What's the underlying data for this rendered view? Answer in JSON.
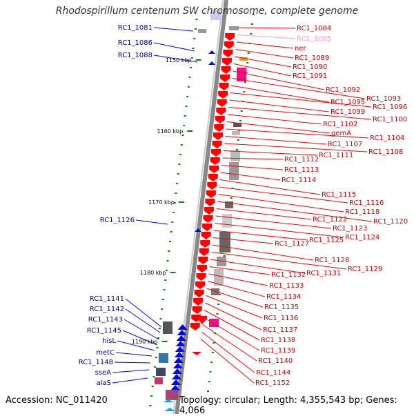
{
  "title": "Rhodospirillum centenum SW chromosome, complete genome",
  "footer": {
    "accession": "Accession: NC_011420",
    "topology": "Topology: circular; Length: 4,355,543 bp; Genes: 4,066"
  },
  "colors": {
    "forward": "#ff0000",
    "reverse": "#0000ff",
    "forward_label": "#cc0000",
    "reverse_label": "#000099",
    "pseudo": "#ff99cc",
    "ticks": "#008800",
    "rna": "#00aaff",
    "backbone": "#888888"
  },
  "scale_labels": [
    "1150 kbp",
    "1160 kbp",
    "1170 kbp",
    "1180 kbp",
    "1190 kbp"
  ],
  "left_labels": [
    "RC1_1081",
    "RC1_1086",
    "RC1_1088",
    "RC1_1126",
    "RC1_1141",
    "RC1_1142",
    "RC1_1143",
    "RC1_1145",
    "hisL",
    "metC",
    "RC1_1148",
    "sseA",
    "alaS"
  ],
  "right_labels": [
    "RC1_1084",
    "RC1_1085",
    "ner",
    "RC1_1089",
    "RC1_1090",
    "RC1_1091",
    "RC1_1092",
    "RC1_1093",
    "RC1_1095",
    "RC1_1096",
    "RC1_1099",
    "RC1_1100",
    "RC1_1102",
    "gemA",
    "RC1_1104",
    "RC1_1107",
    "RC1_1108",
    "RC1_1111",
    "RC1_1112",
    "RC1_1113",
    "RC1_1114",
    "RC1_1115",
    "RC1_1116",
    "RC1_1118",
    "RC1_1120",
    "RC1_1122",
    "RC1_1123",
    "RC1_1124",
    "RC1_1125",
    "RC1_1127",
    "RC1_1128",
    "RC1_1129",
    "RC1_1131",
    "RC1_1132",
    "RC1_1133",
    "RC1_1134",
    "RC1_1135",
    "RC1_1136",
    "RC1_1137",
    "RC1_1138",
    "RC1_1139",
    "RC1_1140",
    "RC1_1144",
    "RC1_1152"
  ]
}
